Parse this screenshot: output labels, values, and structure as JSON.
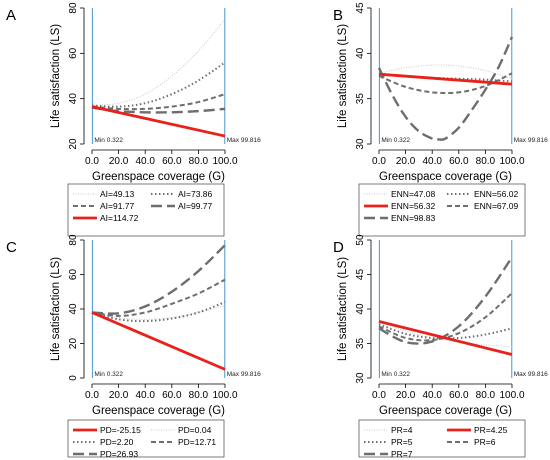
{
  "styles": {
    "dot_light": {
      "color": "#c9c9c9",
      "width": 1.0,
      "dash": "1,1.5"
    },
    "dot_heavy": {
      "color": "#6e6e6e",
      "width": 2.0,
      "dash": "1.5,2.5"
    },
    "dash_short": {
      "color": "#6e6e6e",
      "width": 2.0,
      "dash": "5,3"
    },
    "dash_long": {
      "color": "#6e6e6e",
      "width": 2.4,
      "dash": "11,5"
    },
    "solid_red": {
      "color": "#e8211b",
      "width": 2.8,
      "dash": ""
    },
    "marker_line": {
      "color": "#5a9fd4"
    }
  },
  "chart_data": [
    {
      "panel": "A",
      "type": "line",
      "xlabel": "Greenspace coverage (G)",
      "ylabel": "Life satisfaction (LS)",
      "xlim": [
        0,
        100
      ],
      "ylim": [
        20,
        80
      ],
      "xticks": [
        "0.0",
        "20.0",
        "40.0",
        "60.0",
        "80.0",
        "100.0"
      ],
      "xtick_values": [
        0,
        20,
        40,
        60,
        80,
        100
      ],
      "yticks": [
        "20",
        "40",
        "60",
        "80"
      ],
      "ytick_values": [
        20,
        40,
        60,
        80
      ],
      "min_label": "Min  0.322",
      "max_label": "Max 99.816",
      "min_x": 0.322,
      "max_x": 99.816,
      "series": [
        {
          "name": "AI=49.13",
          "style": "dot_light",
          "x": [
            0,
            20,
            40,
            60,
            80,
            100
          ],
          "y": [
            37,
            38,
            42,
            50,
            61,
            75
          ]
        },
        {
          "name": "AI=73.86",
          "style": "dot_heavy",
          "x": [
            0,
            20,
            40,
            60,
            80,
            100
          ],
          "y": [
            37,
            36.5,
            38,
            42,
            48,
            56
          ]
        },
        {
          "name": "AI=91.77",
          "style": "dash_short",
          "x": [
            0,
            20,
            40,
            60,
            80,
            100
          ],
          "y": [
            36.5,
            35.5,
            35.5,
            36.5,
            38.5,
            42
          ]
        },
        {
          "name": "AI=99.77",
          "style": "dash_long",
          "x": [
            0,
            20,
            40,
            60,
            80,
            100
          ],
          "y": [
            36,
            34.5,
            34,
            34,
            34.5,
            35.5
          ]
        },
        {
          "name": "AI=114.72",
          "style": "solid_red",
          "x": [
            0,
            100
          ],
          "y": [
            36.5,
            23.5
          ]
        }
      ],
      "legend": {
        "columns": 2,
        "order": [
          0,
          1,
          2,
          3,
          4
        ]
      }
    },
    {
      "panel": "B",
      "type": "line",
      "xlabel": "Greenspace coverage (G)",
      "ylabel": "Life satisfaction (LS)",
      "xlim": [
        0,
        100
      ],
      "ylim": [
        30,
        45
      ],
      "xticks": [
        "0.0",
        "20.0",
        "40.0",
        "60.0",
        "80.0",
        "100.0"
      ],
      "xtick_values": [
        0,
        20,
        40,
        60,
        80,
        100
      ],
      "yticks": [
        "30",
        "35",
        "40",
        "45"
      ],
      "ytick_values": [
        30,
        35,
        40,
        45
      ],
      "min_label": "Min  0.322",
      "max_label": "Max 99.816",
      "min_x": 0.322,
      "max_x": 99.816,
      "series": [
        {
          "name": "ENN=47.08",
          "style": "dot_light",
          "x": [
            0,
            20,
            40,
            60,
            80,
            100
          ],
          "y": [
            37.8,
            38.4,
            38.7,
            38.6,
            38.1,
            37.2
          ]
        },
        {
          "name": "ENN=56.02",
          "style": "dot_heavy",
          "x": [
            0,
            20,
            40,
            60,
            80,
            100
          ],
          "y": [
            37.6,
            37.5,
            37.3,
            37.2,
            37.1,
            36.9
          ]
        },
        {
          "name": "ENN=56.32",
          "style": "solid_red",
          "x": [
            0,
            100
          ],
          "y": [
            37.7,
            36.6
          ]
        },
        {
          "name": "ENN=67.09",
          "style": "dash_short",
          "x": [
            0,
            20,
            40,
            60,
            80,
            100
          ],
          "y": [
            37.5,
            36.3,
            35.7,
            35.7,
            36.4,
            37.8
          ]
        },
        {
          "name": "ENN=98.83",
          "style": "dash_long",
          "x": [
            0,
            10,
            20,
            30,
            40,
            45,
            50,
            60,
            70,
            80,
            90,
            100
          ],
          "y": [
            38.4,
            35.4,
            33.0,
            31.4,
            30.6,
            30.5,
            30.6,
            31.8,
            33.8,
            36.0,
            38.5,
            41.8
          ]
        }
      ],
      "legend": {
        "columns": 2,
        "order": [
          0,
          1,
          2,
          3,
          4
        ]
      }
    },
    {
      "panel": "C",
      "type": "line",
      "xlabel": "Greenspace coverage (G)",
      "ylabel": "Life satisfaction (LS)",
      "xlim": [
        0,
        100
      ],
      "ylim": [
        0,
        80
      ],
      "xticks": [
        "0.0",
        "20.0",
        "40.0",
        "60.0",
        "80.0",
        "100.0"
      ],
      "xtick_values": [
        0,
        20,
        40,
        60,
        80,
        100
      ],
      "yticks": [
        "0",
        "20",
        "40",
        "60",
        "80"
      ],
      "ytick_values": [
        0,
        20,
        40,
        60,
        80
      ],
      "min_label": "Min  0.322",
      "max_label": "Max 99.816",
      "min_x": 0.322,
      "max_x": 99.816,
      "series": [
        {
          "name": "PD=-25.15",
          "style": "solid_red",
          "x": [
            0,
            100
          ],
          "y": [
            38,
            5
          ]
        },
        {
          "name": "PD=0.04",
          "style": "dot_light",
          "x": [
            0,
            20,
            40,
            60,
            80,
            100
          ],
          "y": [
            38,
            35,
            34,
            35,
            38,
            42
          ]
        },
        {
          "name": "PD=2.20",
          "style": "dot_heavy",
          "x": [
            0,
            20,
            40,
            60,
            80,
            100
          ],
          "y": [
            38,
            34,
            33,
            34.5,
            38,
            44
          ]
        },
        {
          "name": "PD=12.71",
          "style": "dash_short",
          "x": [
            0,
            20,
            40,
            60,
            80,
            100
          ],
          "y": [
            38,
            36,
            38,
            43,
            49,
            57
          ]
        },
        {
          "name": "PD=26.93",
          "style": "dash_long",
          "x": [
            0,
            20,
            40,
            60,
            80,
            100
          ],
          "y": [
            38,
            37.5,
            41.5,
            50,
            62,
            77
          ]
        }
      ],
      "legend": {
        "columns": 2,
        "order": [
          0,
          1,
          2,
          3,
          4
        ]
      }
    },
    {
      "panel": "D",
      "type": "line",
      "xlabel": "Greenspace coverage (G)",
      "ylabel": "Life satisfaction (LS)",
      "xlim": [
        0,
        100
      ],
      "ylim": [
        30,
        50
      ],
      "xticks": [
        "0.0",
        "20.0",
        "40.0",
        "60.0",
        "80.0",
        "100.0"
      ],
      "xtick_values": [
        0,
        20,
        40,
        60,
        80,
        100
      ],
      "yticks": [
        "30",
        "35",
        "40",
        "45",
        "50"
      ],
      "ytick_values": [
        30,
        35,
        40,
        45,
        50
      ],
      "min_label": "Min  0.322",
      "max_label": "Max 99.816",
      "min_x": 0.322,
      "max_x": 99.816,
      "series": [
        {
          "name": "PR=4",
          "style": "dot_light",
          "x": [
            0,
            20,
            40,
            60,
            80,
            100
          ],
          "y": [
            38.2,
            36.8,
            35.8,
            35.2,
            34.8,
            34.5
          ]
        },
        {
          "name": "PR=4.25",
          "style": "solid_red",
          "x": [
            0,
            100
          ],
          "y": [
            38.2,
            33.4
          ]
        },
        {
          "name": "PR=5",
          "style": "dot_heavy",
          "x": [
            0,
            20,
            40,
            60,
            80,
            100
          ],
          "y": [
            37.8,
            36.4,
            35.8,
            35.8,
            36.3,
            37.2
          ]
        },
        {
          "name": "PR=6",
          "style": "dash_short",
          "x": [
            0,
            20,
            40,
            60,
            80,
            100
          ],
          "y": [
            37.5,
            35.8,
            35.5,
            36.5,
            38.8,
            42.3
          ]
        },
        {
          "name": "PR=7",
          "style": "dash_long",
          "x": [
            0,
            20,
            40,
            60,
            80,
            100
          ],
          "y": [
            37.2,
            35.2,
            35.3,
            37.5,
            41.8,
            47.5
          ]
        }
      ],
      "legend": {
        "columns": 2,
        "order": [
          0,
          1,
          2,
          3,
          4
        ]
      }
    }
  ]
}
